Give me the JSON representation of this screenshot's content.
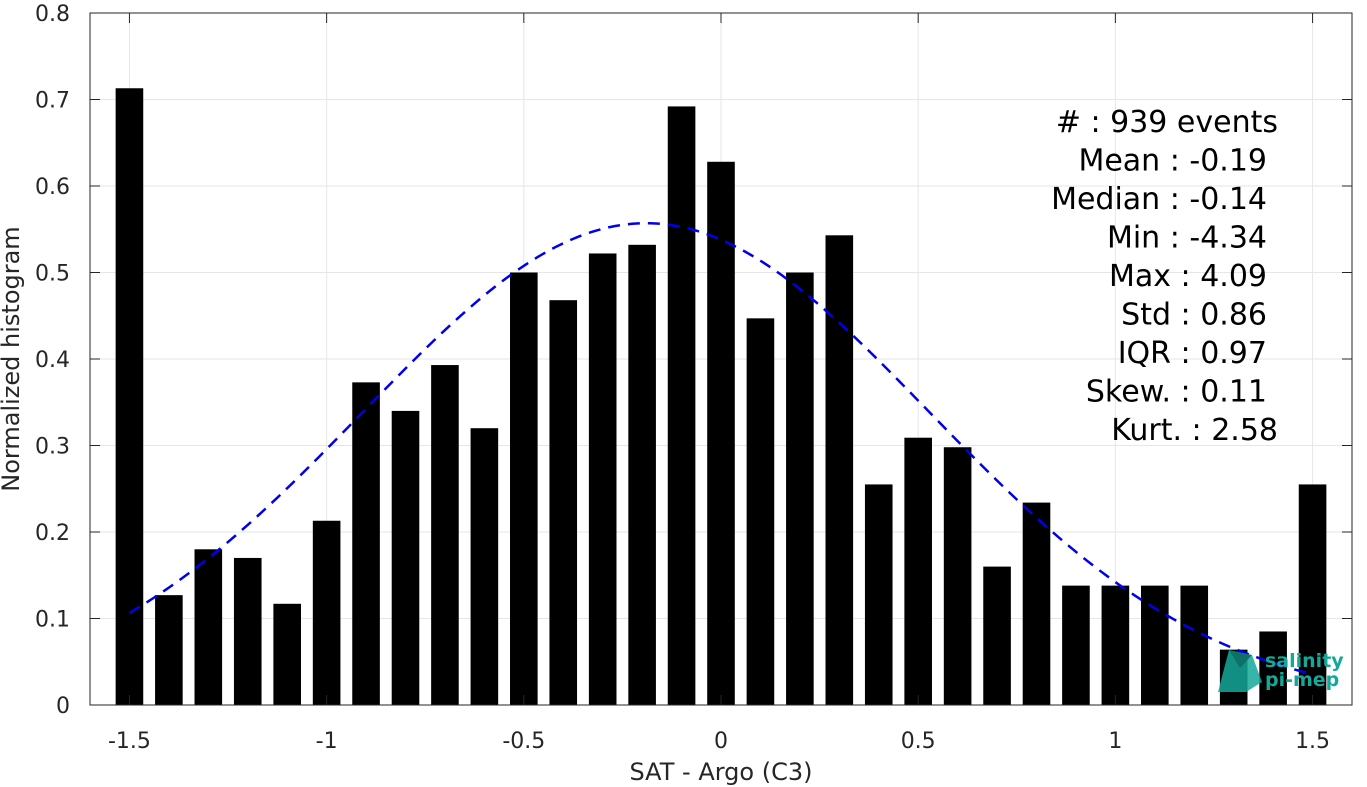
{
  "chart_data": {
    "type": "bar",
    "xlabel": "SAT - Argo (C3)",
    "ylabel": "Normalized histogram",
    "xlim": [
      -1.6,
      1.6
    ],
    "ylim": [
      0,
      0.8
    ],
    "xticks": [
      -1.5,
      -1,
      -0.5,
      0,
      0.5,
      1,
      1.5
    ],
    "xtick_labels": [
      "-1.5",
      "-1",
      "-0.5",
      "0",
      "0.5",
      "1",
      "1.5"
    ],
    "yticks": [
      0,
      0.1,
      0.2,
      0.3,
      0.4,
      0.5,
      0.6,
      0.7,
      0.8
    ],
    "ytick_labels": [
      "0",
      "0.1",
      "0.2",
      "0.3",
      "0.4",
      "0.5",
      "0.6",
      "0.7",
      "0.8"
    ],
    "grid": true,
    "bar_color": "#000000",
    "fit_color": "#0000ee",
    "x": [
      -1.5,
      -1.4,
      -1.3,
      -1.2,
      -1.1,
      -1.0,
      -0.9,
      -0.8,
      -0.7,
      -0.6,
      -0.5,
      -0.4,
      -0.3,
      -0.2,
      -0.1,
      0.0,
      0.1,
      0.2,
      0.3,
      0.4,
      0.5,
      0.6,
      0.7,
      0.8,
      0.9,
      1.0,
      1.1,
      1.2,
      1.3,
      1.4,
      1.5
    ],
    "values": [
      0.713,
      0.127,
      0.18,
      0.17,
      0.117,
      0.213,
      0.373,
      0.34,
      0.393,
      0.32,
      0.5,
      0.468,
      0.522,
      0.532,
      0.692,
      0.628,
      0.447,
      0.5,
      0.543,
      0.255,
      0.309,
      0.298,
      0.16,
      0.234,
      0.138,
      0.138,
      0.138,
      0.138,
      0.064,
      0.085,
      0.255
    ],
    "fit": {
      "type": "normal",
      "style": "dashed",
      "mean": -0.19,
      "std": 0.72,
      "peak": 0.557,
      "x_range": [
        -1.5,
        1.5
      ]
    },
    "stats": [
      "#  : 939 events",
      "Mean : -0.19",
      "Median : -0.14",
      "Min : -4.34",
      "Max : 4.09",
      "Std : 0.86",
      "IQR : 0.97",
      "Skew. : 0.11",
      "Kurt. : 2.58"
    ]
  },
  "logo": {
    "line1": "salinity",
    "line2": "pi-mep",
    "color": "#14a89a"
  }
}
